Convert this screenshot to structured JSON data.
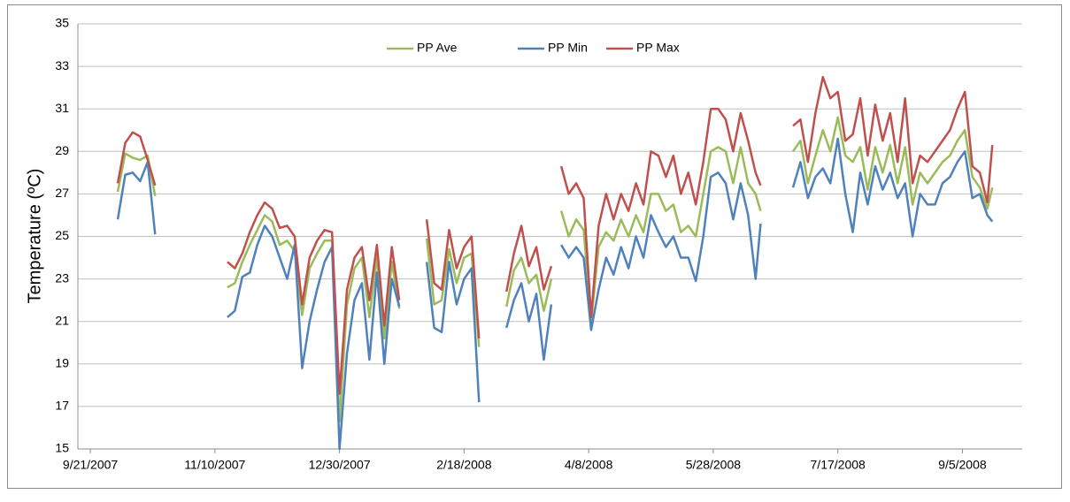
{
  "chart_data": {
    "type": "line",
    "y_label": "Temperature (ºC)",
    "ylim": [
      15,
      35
    ],
    "yticks": [
      15,
      17,
      19,
      21,
      23,
      25,
      27,
      29,
      31,
      33,
      35
    ],
    "grid": true,
    "xlim": [
      "2007-09-16",
      "2008-09-29"
    ],
    "xticks": [
      {
        "value": "2007-09-21",
        "label": "9/21/2007"
      },
      {
        "value": "2007-11-10",
        "label": "11/10/2007"
      },
      {
        "value": "2007-12-30",
        "label": "12/30/2007"
      },
      {
        "value": "2008-02-18",
        "label": "2/18/2008"
      },
      {
        "value": "2008-04-08",
        "label": "4/8/2008"
      },
      {
        "value": "2008-05-28",
        "label": "5/28/2008"
      },
      {
        "value": "2008-07-17",
        "label": "7/17/2008"
      },
      {
        "value": "2008-09-05",
        "label": "9/5/2008"
      }
    ],
    "legend": "top",
    "x": [
      "2007-10-02",
      "2007-10-05",
      "2007-10-08",
      "2007-10-11",
      "2007-10-14",
      "2007-10-17",
      "2007-10-31",
      "2007-11-15",
      "2007-11-18",
      "2007-11-21",
      "2007-11-24",
      "2007-11-27",
      "2007-11-30",
      "2007-12-03",
      "2007-12-06",
      "2007-12-09",
      "2007-12-12",
      "2007-12-15",
      "2007-12-18",
      "2007-12-21",
      "2007-12-24",
      "2007-12-27",
      "2007-12-30",
      "2008-01-02",
      "2008-01-05",
      "2008-01-08",
      "2008-01-11",
      "2008-01-14",
      "2008-01-17",
      "2008-01-20",
      "2008-01-23",
      "2008-01-29",
      "2008-02-03",
      "2008-02-06",
      "2008-02-09",
      "2008-02-12",
      "2008-02-15",
      "2008-02-18",
      "2008-02-21",
      "2008-02-24",
      "2008-02-29",
      "2008-03-06",
      "2008-03-09",
      "2008-03-12",
      "2008-03-15",
      "2008-03-18",
      "2008-03-21",
      "2008-03-24",
      "2008-03-26",
      "2008-03-28",
      "2008-03-31",
      "2008-04-03",
      "2008-04-06",
      "2008-04-09",
      "2008-04-12",
      "2008-04-15",
      "2008-04-18",
      "2008-04-21",
      "2008-04-24",
      "2008-04-27",
      "2008-04-30",
      "2008-05-03",
      "2008-05-06",
      "2008-05-09",
      "2008-05-12",
      "2008-05-15",
      "2008-05-18",
      "2008-05-21",
      "2008-05-24",
      "2008-05-27",
      "2008-05-30",
      "2008-06-02",
      "2008-06-05",
      "2008-06-08",
      "2008-06-11",
      "2008-06-14",
      "2008-06-16",
      "2008-06-22",
      "2008-06-29",
      "2008-07-02",
      "2008-07-05",
      "2008-07-08",
      "2008-07-11",
      "2008-07-14",
      "2008-07-17",
      "2008-07-20",
      "2008-07-23",
      "2008-07-26",
      "2008-07-29",
      "2008-08-01",
      "2008-08-04",
      "2008-08-07",
      "2008-08-10",
      "2008-08-13",
      "2008-08-16",
      "2008-08-19",
      "2008-08-22",
      "2008-08-25",
      "2008-08-28",
      "2008-08-31",
      "2008-09-03",
      "2008-09-06",
      "2008-09-09",
      "2008-09-12",
      "2008-09-15",
      "2008-09-17"
    ],
    "series": [
      {
        "name": "PP Ave",
        "color": "#9bbb59",
        "values": [
          27.1,
          28.9,
          28.7,
          28.6,
          28.8,
          26.9,
          null,
          22.6,
          22.8,
          23.8,
          24.6,
          25.3,
          26.0,
          25.7,
          24.6,
          24.8,
          24.3,
          21.3,
          23.5,
          24.2,
          24.8,
          24.8,
          16.3,
          21.8,
          23.5,
          24.0,
          21.2,
          24.0,
          20.2,
          23.8,
          21.6,
          null,
          24.9,
          21.8,
          22.0,
          24.4,
          22.8,
          24.0,
          24.2,
          19.8,
          null,
          21.7,
          23.4,
          24.0,
          22.8,
          23.2,
          21.5,
          23.0,
          null,
          26.2,
          25.0,
          25.8,
          25.3,
          21.0,
          24.5,
          25.2,
          24.8,
          25.8,
          25.0,
          26.0,
          25.2,
          27.0,
          27.0,
          26.2,
          26.5,
          25.2,
          25.5,
          25.0,
          27.0,
          29.0,
          29.2,
          29.0,
          27.5,
          29.2,
          27.5,
          27.0,
          26.2,
          null,
          29.0,
          29.5,
          27.5,
          28.8,
          30.0,
          29.0,
          30.6,
          28.8,
          28.5,
          29.2,
          27.2,
          29.2,
          28.0,
          29.3,
          27.5,
          29.2,
          26.5,
          28.0,
          27.5,
          28.0,
          28.5,
          28.8,
          29.5,
          30.0,
          27.8,
          27.3,
          26.3,
          27.3
        ]
      },
      {
        "name": "PP Min",
        "color": "#4f81bd",
        "values": [
          25.8,
          27.9,
          28.0,
          27.6,
          28.5,
          25.1,
          null,
          21.2,
          21.5,
          23.1,
          23.3,
          24.6,
          25.5,
          25.0,
          24.0,
          23.0,
          24.6,
          18.8,
          21.0,
          22.5,
          23.8,
          24.5,
          15.0,
          19.5,
          22.0,
          22.8,
          19.2,
          23.3,
          19.0,
          23.0,
          21.7,
          null,
          23.8,
          20.7,
          20.5,
          23.8,
          21.8,
          23.0,
          23.5,
          17.2,
          null,
          20.7,
          22.0,
          22.8,
          21.0,
          22.3,
          19.2,
          21.8,
          null,
          24.6,
          24.0,
          24.5,
          24.0,
          20.6,
          22.5,
          24.0,
          23.2,
          24.5,
          23.5,
          25.0,
          24.0,
          26.0,
          25.2,
          24.5,
          25.0,
          24.0,
          24.0,
          22.9,
          25.0,
          27.8,
          28.0,
          27.5,
          25.8,
          27.5,
          26.0,
          23.0,
          25.6,
          null,
          27.3,
          28.5,
          26.8,
          27.8,
          28.2,
          27.5,
          29.6,
          27.0,
          25.2,
          28.0,
          26.5,
          28.3,
          27.2,
          28.0,
          26.8,
          27.5,
          25.0,
          27.0,
          26.5,
          26.5,
          27.5,
          27.8,
          28.5,
          29.0,
          26.8,
          27.0,
          26.0,
          25.7
        ]
      },
      {
        "name": "PP Max",
        "color": "#c0504d",
        "values": [
          27.5,
          29.4,
          29.9,
          29.7,
          28.6,
          27.4,
          null,
          23.8,
          23.5,
          24.2,
          25.2,
          26.0,
          26.6,
          26.3,
          25.4,
          25.5,
          25.0,
          21.8,
          24.0,
          24.8,
          25.3,
          25.2,
          17.6,
          22.5,
          24.0,
          24.5,
          22.0,
          24.6,
          20.8,
          24.5,
          22.0,
          null,
          25.8,
          22.8,
          22.5,
          25.3,
          23.5,
          24.5,
          25.0,
          20.2,
          null,
          22.4,
          24.2,
          25.5,
          23.6,
          24.5,
          22.5,
          23.6,
          null,
          28.3,
          27.0,
          27.5,
          26.8,
          21.2,
          25.5,
          27.0,
          25.8,
          27.0,
          26.2,
          27.5,
          26.5,
          29.0,
          28.8,
          27.8,
          28.8,
          27.0,
          28.0,
          26.5,
          28.5,
          31.0,
          31.0,
          30.5,
          29.0,
          30.8,
          29.5,
          28.0,
          27.4,
          null,
          30.2,
          30.5,
          28.5,
          30.8,
          32.5,
          31.5,
          31.8,
          29.5,
          29.8,
          31.5,
          28.8,
          31.2,
          29.5,
          30.8,
          28.5,
          31.5,
          27.5,
          28.8,
          28.5,
          29.0,
          29.5,
          30.0,
          31.0,
          31.8,
          28.3,
          28.0,
          26.6,
          29.3
        ]
      }
    ]
  }
}
